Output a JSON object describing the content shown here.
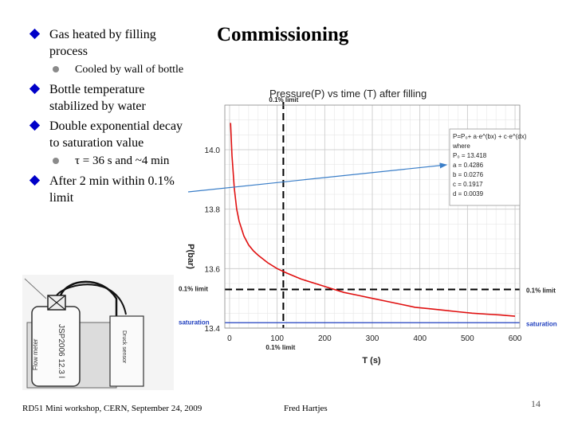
{
  "slide": {
    "title": "Commissioning",
    "bullets": [
      {
        "text": "Gas heated by filling process",
        "sub": [
          "Cooled by wall of bottle"
        ]
      },
      {
        "text": "Bottle temperature stabilized by water",
        "sub": []
      },
      {
        "text": "Double exponential decay to saturation value",
        "sub": [
          "τ = 36 s and ~4 min"
        ]
      },
      {
        "text": "After 2 min within 0.1% limit",
        "sub": []
      }
    ],
    "footer_left": "RD51 Mini workshop, CERN, September 24, 2009",
    "footer_center": "Fred Hartjes",
    "page_number": "14"
  },
  "photo": {
    "bottle_label": "JSP2006 12.3 l",
    "flow_label": "Flow meter",
    "box_label": "Druck sensor"
  },
  "chart_data": {
    "type": "line",
    "title": "Pressure(P) vs time (T) after filling",
    "xlabel": "T (s)",
    "ylabel": "P(bar)",
    "xlim": [
      -10,
      610
    ],
    "ylim": [
      13.4,
      14.15
    ],
    "xticks": [
      0,
      100,
      200,
      300,
      400,
      500,
      600
    ],
    "yticks": [
      13.4,
      13.6,
      13.8,
      14.0
    ],
    "grid": true,
    "series": [
      {
        "color": "#e01010",
        "x": [
          2,
          5,
          10,
          15,
          20,
          30,
          40,
          50,
          60,
          80,
          100,
          120,
          150,
          180,
          210,
          240,
          270,
          300,
          330,
          360,
          390,
          420,
          450,
          480,
          510,
          540,
          570,
          600
        ],
        "y": [
          14.09,
          13.98,
          13.87,
          13.8,
          13.76,
          13.71,
          13.68,
          13.66,
          13.645,
          13.62,
          13.6,
          13.585,
          13.565,
          13.55,
          13.535,
          13.52,
          13.51,
          13.5,
          13.49,
          13.48,
          13.47,
          13.465,
          13.46,
          13.455,
          13.45,
          13.447,
          13.444,
          13.44
        ]
      }
    ],
    "reference_lines": [
      {
        "orientation": "vertical",
        "x": 113,
        "label": "0.1% limit",
        "style": "dashed",
        "color": "#000000"
      },
      {
        "orientation": "horizontal",
        "y": 13.53,
        "label": "0.1% limit",
        "style": "dashed",
        "color": "#000000"
      },
      {
        "orientation": "horizontal",
        "y": 13.418,
        "label": "saturation",
        "style": "solid",
        "color": "#1f3fbf"
      }
    ],
    "fit_box": {
      "formula": "P=P₀+ a·e^(bx) + c·e^(dx)",
      "where": "where",
      "params": [
        "P₀ = 13.418",
        "a = 0.4286",
        "b = 0.0276",
        "c = 0.1917",
        "d = 0.0039"
      ]
    }
  }
}
